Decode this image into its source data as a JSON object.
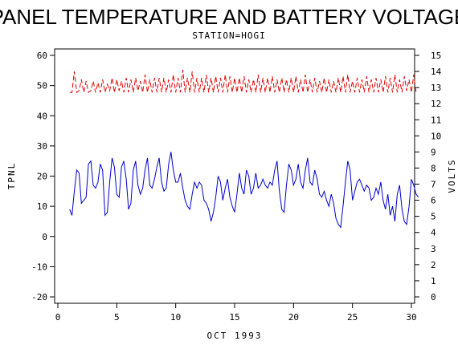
{
  "chart_data": {
    "type": "line",
    "title": "PANEL TEMPERATURE AND BATTERY VOLTAGE",
    "subtitle": "STATION=HOGI",
    "xlabel": "OCT 1993",
    "ylabel": "TPNL",
    "y2label": "VOLTS",
    "xlim": [
      0,
      30
    ],
    "ylim": [
      -20,
      60
    ],
    "y2lim": [
      0,
      15
    ],
    "x_ticks": [
      0,
      5,
      10,
      15,
      20,
      25,
      30
    ],
    "y_ticks": [
      -20,
      -10,
      0,
      10,
      20,
      30,
      40,
      50,
      60
    ],
    "y2_ticks": [
      0,
      1,
      2,
      3,
      4,
      5,
      6,
      7,
      8,
      9,
      10,
      11,
      12,
      13,
      14,
      15
    ],
    "grid": false,
    "series": [
      {
        "axis": "left",
        "color": "#0000cc",
        "style": "solid",
        "points": [
          [
            1.0,
            9
          ],
          [
            1.2,
            7
          ],
          [
            1.4,
            15
          ],
          [
            1.6,
            22
          ],
          [
            1.8,
            21
          ],
          [
            2.0,
            11
          ],
          [
            2.2,
            12
          ],
          [
            2.4,
            13
          ],
          [
            2.6,
            24
          ],
          [
            2.8,
            25
          ],
          [
            3.0,
            17
          ],
          [
            3.2,
            16
          ],
          [
            3.4,
            18
          ],
          [
            3.6,
            24
          ],
          [
            3.8,
            22
          ],
          [
            4.0,
            7
          ],
          [
            4.2,
            8
          ],
          [
            4.4,
            18
          ],
          [
            4.6,
            26
          ],
          [
            4.8,
            23
          ],
          [
            5.0,
            14
          ],
          [
            5.2,
            13
          ],
          [
            5.4,
            23
          ],
          [
            5.6,
            25
          ],
          [
            5.8,
            19
          ],
          [
            6.0,
            9
          ],
          [
            6.2,
            11
          ],
          [
            6.4,
            22
          ],
          [
            6.6,
            25
          ],
          [
            6.8,
            17
          ],
          [
            7.0,
            14
          ],
          [
            7.2,
            16
          ],
          [
            7.4,
            22
          ],
          [
            7.6,
            26
          ],
          [
            7.8,
            17
          ],
          [
            8.0,
            16
          ],
          [
            8.2,
            19
          ],
          [
            8.4,
            23
          ],
          [
            8.6,
            26
          ],
          [
            8.8,
            18
          ],
          [
            9.0,
            15
          ],
          [
            9.2,
            16
          ],
          [
            9.4,
            24
          ],
          [
            9.6,
            28
          ],
          [
            9.8,
            22
          ],
          [
            10.0,
            18
          ],
          [
            10.2,
            18
          ],
          [
            10.4,
            21
          ],
          [
            10.6,
            16
          ],
          [
            10.8,
            12
          ],
          [
            11.0,
            10
          ],
          [
            11.2,
            9
          ],
          [
            11.4,
            14
          ],
          [
            11.6,
            18
          ],
          [
            11.8,
            16
          ],
          [
            12.0,
            18
          ],
          [
            12.2,
            17
          ],
          [
            12.4,
            12
          ],
          [
            12.6,
            11
          ],
          [
            12.8,
            9
          ],
          [
            13.0,
            5
          ],
          [
            13.2,
            8
          ],
          [
            13.4,
            13
          ],
          [
            13.6,
            20
          ],
          [
            13.8,
            18
          ],
          [
            14.0,
            12
          ],
          [
            14.2,
            16
          ],
          [
            14.4,
            19
          ],
          [
            14.6,
            13
          ],
          [
            14.8,
            10
          ],
          [
            15.0,
            8
          ],
          [
            15.2,
            14
          ],
          [
            15.4,
            21
          ],
          [
            15.6,
            16
          ],
          [
            15.8,
            14
          ],
          [
            16.0,
            22
          ],
          [
            16.2,
            20
          ],
          [
            16.4,
            14
          ],
          [
            16.6,
            16
          ],
          [
            16.8,
            21
          ],
          [
            17.0,
            16
          ],
          [
            17.2,
            17
          ],
          [
            17.4,
            19
          ],
          [
            17.6,
            17
          ],
          [
            17.8,
            16
          ],
          [
            18.0,
            18
          ],
          [
            18.2,
            17
          ],
          [
            18.4,
            22
          ],
          [
            18.6,
            25
          ],
          [
            18.8,
            15
          ],
          [
            19.0,
            9
          ],
          [
            19.2,
            8
          ],
          [
            19.4,
            17
          ],
          [
            19.6,
            24
          ],
          [
            19.8,
            22
          ],
          [
            20.0,
            17
          ],
          [
            20.2,
            19
          ],
          [
            20.4,
            24
          ],
          [
            20.6,
            18
          ],
          [
            20.8,
            16
          ],
          [
            21.0,
            22
          ],
          [
            21.2,
            26
          ],
          [
            21.4,
            18
          ],
          [
            21.6,
            17
          ],
          [
            21.8,
            22
          ],
          [
            22.0,
            19
          ],
          [
            22.2,
            14
          ],
          [
            22.4,
            13
          ],
          [
            22.6,
            15
          ],
          [
            22.8,
            12
          ],
          [
            23.0,
            10
          ],
          [
            23.2,
            14
          ],
          [
            23.4,
            11
          ],
          [
            23.6,
            6
          ],
          [
            23.8,
            4
          ],
          [
            24.0,
            3
          ],
          [
            24.2,
            10
          ],
          [
            24.4,
            18
          ],
          [
            24.6,
            25
          ],
          [
            24.8,
            22
          ],
          [
            25.0,
            12
          ],
          [
            25.2,
            15
          ],
          [
            25.4,
            18
          ],
          [
            25.6,
            19
          ],
          [
            25.8,
            17
          ],
          [
            26.0,
            15
          ],
          [
            26.2,
            17
          ],
          [
            26.4,
            16
          ],
          [
            26.6,
            12
          ],
          [
            26.8,
            13
          ],
          [
            27.0,
            16
          ],
          [
            27.2,
            14
          ],
          [
            27.4,
            18
          ],
          [
            27.6,
            12
          ],
          [
            27.8,
            9
          ],
          [
            28.0,
            14
          ],
          [
            28.2,
            7
          ],
          [
            28.4,
            10
          ],
          [
            28.6,
            5
          ],
          [
            28.8,
            14
          ],
          [
            29.0,
            17
          ],
          [
            29.2,
            9
          ],
          [
            29.4,
            5
          ],
          [
            29.6,
            4
          ],
          [
            29.8,
            10
          ],
          [
            30.0,
            19
          ],
          [
            30.2,
            17
          ],
          [
            30.4,
            14
          ],
          [
            30.6,
            13
          ]
        ]
      },
      {
        "axis": "right",
        "color": "#dd0000",
        "style": "dashed",
        "points": [
          [
            1.0,
            12.7
          ],
          [
            1.2,
            12.7
          ],
          [
            1.4,
            14.0
          ],
          [
            1.6,
            12.7
          ],
          [
            1.8,
            12.8
          ],
          [
            2.0,
            13.5
          ],
          [
            2.2,
            12.7
          ],
          [
            2.4,
            13.4
          ],
          [
            2.6,
            12.7
          ],
          [
            2.8,
            12.8
          ],
          [
            3.0,
            13.4
          ],
          [
            3.2,
            12.7
          ],
          [
            3.4,
            13.3
          ],
          [
            3.6,
            12.7
          ],
          [
            3.8,
            13.5
          ],
          [
            4.0,
            12.7
          ],
          [
            4.2,
            13.2
          ],
          [
            4.4,
            12.8
          ],
          [
            4.6,
            13.6
          ],
          [
            4.8,
            12.7
          ],
          [
            5.0,
            13.5
          ],
          [
            5.2,
            12.8
          ],
          [
            5.4,
            13.4
          ],
          [
            5.6,
            12.7
          ],
          [
            5.8,
            13.6
          ],
          [
            6.0,
            12.7
          ],
          [
            6.2,
            13.5
          ],
          [
            6.4,
            12.7
          ],
          [
            6.6,
            13.6
          ],
          [
            6.8,
            12.8
          ],
          [
            7.0,
            13.4
          ],
          [
            7.2,
            12.7
          ],
          [
            7.4,
            13.8
          ],
          [
            7.6,
            12.7
          ],
          [
            7.8,
            13.5
          ],
          [
            8.0,
            12.7
          ],
          [
            8.2,
            13.6
          ],
          [
            8.4,
            12.7
          ],
          [
            8.6,
            13.6
          ],
          [
            8.8,
            12.7
          ],
          [
            9.0,
            13.6
          ],
          [
            9.2,
            12.7
          ],
          [
            9.4,
            13.5
          ],
          [
            9.6,
            12.7
          ],
          [
            9.8,
            13.8
          ],
          [
            10.0,
            12.7
          ],
          [
            10.2,
            13.6
          ],
          [
            10.4,
            12.7
          ],
          [
            10.6,
            14.1
          ],
          [
            10.8,
            12.7
          ],
          [
            11.0,
            13.6
          ],
          [
            11.2,
            12.7
          ],
          [
            11.4,
            14.0
          ],
          [
            11.6,
            12.7
          ],
          [
            11.8,
            13.6
          ],
          [
            12.0,
            12.7
          ],
          [
            12.2,
            13.6
          ],
          [
            12.4,
            12.7
          ],
          [
            12.6,
            13.8
          ],
          [
            12.8,
            12.7
          ],
          [
            13.0,
            13.6
          ],
          [
            13.2,
            12.7
          ],
          [
            13.4,
            13.7
          ],
          [
            13.6,
            12.7
          ],
          [
            13.8,
            13.6
          ],
          [
            14.0,
            12.7
          ],
          [
            14.2,
            13.8
          ],
          [
            14.4,
            12.7
          ],
          [
            14.6,
            13.7
          ],
          [
            14.8,
            12.7
          ],
          [
            15.0,
            13.6
          ],
          [
            15.2,
            12.7
          ],
          [
            15.4,
            13.6
          ],
          [
            15.6,
            12.7
          ],
          [
            15.8,
            13.7
          ],
          [
            16.0,
            12.7
          ],
          [
            16.2,
            13.5
          ],
          [
            16.4,
            12.7
          ],
          [
            16.6,
            13.5
          ],
          [
            16.8,
            12.7
          ],
          [
            17.0,
            13.8
          ],
          [
            17.2,
            12.7
          ],
          [
            17.4,
            13.6
          ],
          [
            17.6,
            12.7
          ],
          [
            17.8,
            13.6
          ],
          [
            18.0,
            12.7
          ],
          [
            18.2,
            13.7
          ],
          [
            18.4,
            12.7
          ],
          [
            18.6,
            13.5
          ],
          [
            18.8,
            12.7
          ],
          [
            19.0,
            13.6
          ],
          [
            19.2,
            12.7
          ],
          [
            19.4,
            13.5
          ],
          [
            19.6,
            12.7
          ],
          [
            19.8,
            13.6
          ],
          [
            20.0,
            12.7
          ],
          [
            20.2,
            13.7
          ],
          [
            20.4,
            12.7
          ],
          [
            20.6,
            13.5
          ],
          [
            20.8,
            12.7
          ],
          [
            21.0,
            13.8
          ],
          [
            21.2,
            12.7
          ],
          [
            21.4,
            13.5
          ],
          [
            21.6,
            12.7
          ],
          [
            21.8,
            13.6
          ],
          [
            22.0,
            12.7
          ],
          [
            22.2,
            13.4
          ],
          [
            22.4,
            12.7
          ],
          [
            22.6,
            13.6
          ],
          [
            22.8,
            12.7
          ],
          [
            23.0,
            13.5
          ],
          [
            23.2,
            12.7
          ],
          [
            23.4,
            13.4
          ],
          [
            23.6,
            12.7
          ],
          [
            23.8,
            13.6
          ],
          [
            24.0,
            12.7
          ],
          [
            24.2,
            13.7
          ],
          [
            24.4,
            12.7
          ],
          [
            24.6,
            13.8
          ],
          [
            24.8,
            12.7
          ],
          [
            25.0,
            13.4
          ],
          [
            25.2,
            12.7
          ],
          [
            25.4,
            13.6
          ],
          [
            25.6,
            12.7
          ],
          [
            25.8,
            13.5
          ],
          [
            26.0,
            12.7
          ],
          [
            26.2,
            13.7
          ],
          [
            26.4,
            12.7
          ],
          [
            26.6,
            13.5
          ],
          [
            26.8,
            12.7
          ],
          [
            27.0,
            13.6
          ],
          [
            27.2,
            12.7
          ],
          [
            27.4,
            13.5
          ],
          [
            27.6,
            12.7
          ],
          [
            27.8,
            13.7
          ],
          [
            28.0,
            12.7
          ],
          [
            28.2,
            13.6
          ],
          [
            28.4,
            12.7
          ],
          [
            28.6,
            13.8
          ],
          [
            28.8,
            12.7
          ],
          [
            29.0,
            13.5
          ],
          [
            29.2,
            12.7
          ],
          [
            29.4,
            13.7
          ],
          [
            29.6,
            12.8
          ],
          [
            29.8,
            13.5
          ],
          [
            30.0,
            12.7
          ],
          [
            30.2,
            13.8
          ],
          [
            30.4,
            12.7
          ]
        ]
      }
    ]
  }
}
